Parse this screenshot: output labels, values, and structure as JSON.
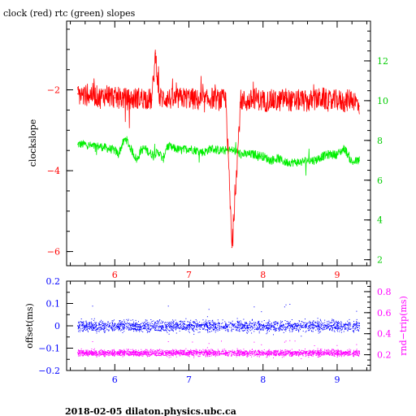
{
  "title": "clock (red) rtc (green) slopes",
  "footer": "2018-02-05  dilaton.physics.ubc.ca",
  "colors": {
    "axis": "#000000",
    "clock": "#ff0000",
    "rtc": "#00ee00",
    "offset": "#0000ff",
    "rndtrip": "#ff00ff"
  },
  "chart_data": [
    {
      "type": "line",
      "title": "clock (red) rtc (green) slopes",
      "xlim": [
        5.35,
        9.45
      ],
      "x_ticks": [
        6,
        7,
        8,
        9
      ],
      "x_tick_labels": [
        "6",
        "7",
        "8",
        "9"
      ],
      "ylabel_left": "clockslope",
      "ylim_left": [
        -6.35,
        -0.3
      ],
      "y_ticks_left": [
        -6,
        -4,
        -2
      ],
      "y_tick_labels_left": [
        "−6",
        "−4",
        "−2"
      ],
      "ylim_right": [
        1.7,
        14.0
      ],
      "y_ticks_right": [
        2,
        4,
        6,
        8,
        10,
        12
      ],
      "y_tick_labels_right": [
        "2",
        "4",
        "6",
        "8",
        "10",
        "12"
      ],
      "series": [
        {
          "name": "clock (red)",
          "axis": "left",
          "x": [
            5.5,
            5.6,
            5.7,
            5.8,
            5.9,
            6.0,
            6.1,
            6.2,
            6.3,
            6.4,
            6.5,
            6.55,
            6.6,
            6.7,
            6.8,
            6.9,
            7.0,
            7.1,
            7.2,
            7.3,
            7.4,
            7.5,
            7.58,
            7.7,
            7.8,
            7.9,
            8.0,
            8.1,
            8.2,
            8.3,
            8.4,
            8.5,
            8.6,
            8.7,
            8.8,
            8.9,
            9.0,
            9.1,
            9.2,
            9.3
          ],
          "y": [
            -2.1,
            -2.15,
            -2.1,
            -2.2,
            -2.1,
            -2.2,
            -2.2,
            -2.25,
            -2.2,
            -2.2,
            -2.25,
            -1.1,
            -2.2,
            -2.2,
            -2.25,
            -2.2,
            -2.2,
            -2.25,
            -2.3,
            -2.2,
            -2.25,
            -2.25,
            -5.9,
            -2.25,
            -2.3,
            -2.2,
            -2.3,
            -2.25,
            -2.3,
            -2.2,
            -2.3,
            -2.25,
            -2.3,
            -2.25,
            -2.2,
            -2.3,
            -2.25,
            -2.3,
            -2.2,
            -2.4
          ]
        },
        {
          "name": "rtc (green)",
          "axis": "right",
          "x": [
            5.5,
            5.6,
            5.7,
            5.8,
            5.9,
            6.0,
            6.05,
            6.1,
            6.15,
            6.2,
            6.3,
            6.35,
            6.4,
            6.5,
            6.6,
            6.65,
            6.7,
            6.8,
            6.9,
            7.0,
            7.1,
            7.2,
            7.3,
            7.4,
            7.5,
            7.6,
            7.7,
            7.8,
            7.9,
            8.0,
            8.1,
            8.2,
            8.3,
            8.4,
            8.5,
            8.6,
            8.7,
            8.8,
            8.9,
            9.0,
            9.1,
            9.2,
            9.3
          ],
          "y": [
            7.8,
            7.8,
            7.7,
            7.7,
            7.6,
            7.5,
            7.3,
            7.8,
            8.1,
            7.7,
            7.0,
            7.5,
            7.6,
            7.3,
            7.4,
            7.0,
            7.7,
            7.6,
            7.5,
            7.6,
            7.5,
            7.4,
            7.6,
            7.5,
            7.5,
            7.5,
            7.3,
            7.3,
            7.3,
            7.2,
            7.0,
            7.1,
            6.9,
            6.9,
            6.9,
            7.0,
            7.0,
            7.2,
            7.3,
            7.3,
            7.6,
            6.9,
            7.0
          ]
        }
      ]
    },
    {
      "type": "scatter",
      "xlim": [
        5.35,
        9.45
      ],
      "x_ticks": [
        6,
        7,
        8,
        9
      ],
      "x_tick_labels": [
        "6",
        "7",
        "8",
        "9"
      ],
      "ylabel_left": "offset(ms)",
      "ylim_left": [
        -0.2,
        0.2
      ],
      "y_ticks_left": [
        -0.2,
        -0.1,
        0,
        0.1,
        0.2
      ],
      "y_tick_labels_left": [
        "−0.2",
        "−0.1",
        "0",
        "0.1",
        "0.2"
      ],
      "ylabel_right": "rnd−trip(ms)",
      "ylim_right": [
        0.05,
        0.9
      ],
      "y_ticks_right": [
        0.2,
        0.4,
        0.6,
        0.8
      ],
      "y_tick_labels_right": [
        "0.2",
        "0.4",
        "0.6",
        "0.8"
      ],
      "series": [
        {
          "name": "offset",
          "axis": "left",
          "x": [
            5.5,
            5.75,
            6.0,
            6.25,
            6.5,
            6.75,
            7.0,
            7.25,
            7.5,
            7.75,
            8.0,
            8.25,
            8.5,
            8.75,
            9.0,
            9.3
          ],
          "y": [
            0.0,
            0.0,
            0.0,
            0.0,
            0.0,
            0.0,
            0.0,
            0.0,
            0.0,
            0.0,
            0.0,
            0.0,
            0.0,
            0.0,
            0.0,
            0.0
          ]
        },
        {
          "name": "rnd-trip",
          "axis": "right",
          "x": [
            5.5,
            5.75,
            6.0,
            6.25,
            6.5,
            6.75,
            7.0,
            7.25,
            7.5,
            7.75,
            8.0,
            8.25,
            8.5,
            8.75,
            9.0,
            9.3
          ],
          "y": [
            0.22,
            0.22,
            0.22,
            0.22,
            0.22,
            0.22,
            0.22,
            0.22,
            0.22,
            0.22,
            0.22,
            0.22,
            0.22,
            0.22,
            0.22,
            0.22
          ]
        }
      ]
    }
  ]
}
